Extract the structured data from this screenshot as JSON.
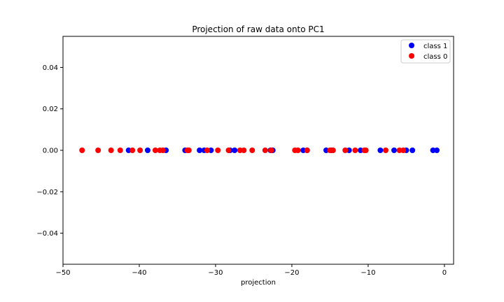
{
  "chart_data": {
    "type": "scatter",
    "title": "Projection of raw data onto PC1",
    "xlabel": "projection",
    "ylabel": "",
    "xlim": [
      -50,
      1.2
    ],
    "ylim": [
      -0.055,
      0.055
    ],
    "xticks": [
      -50,
      -40,
      -30,
      -20,
      -10,
      0
    ],
    "yticks": [
      -0.04,
      -0.02,
      0.0,
      0.02,
      0.04
    ],
    "ytick_labels": [
      "−0.04",
      "−0.02",
      "0.00",
      "0.02",
      "0.04"
    ],
    "xtick_labels": [
      "−50",
      "−40",
      "−30",
      "−20",
      "−10",
      "0"
    ],
    "grid": false,
    "legend": "top-right",
    "series": [
      {
        "name": "class 1",
        "color": "#0000ff",
        "x": [
          -41.4,
          -38.9,
          -36.5,
          -34.0,
          -32.1,
          -31.5,
          -30.6,
          -28.1,
          -27.5,
          -22.5,
          -22.8,
          -18.5,
          -18.0,
          -15.5,
          -14.8,
          -12.5,
          -11.0,
          -8.4,
          -6.6,
          -5.0,
          -4.2,
          -1.5,
          -1.0
        ],
        "y": [
          0,
          0,
          0,
          0,
          0,
          0,
          0,
          0,
          0,
          0,
          0,
          0,
          0,
          0,
          0,
          0,
          0,
          0,
          0,
          0,
          0,
          0,
          0
        ]
      },
      {
        "name": "class 0",
        "color": "#ff0000",
        "x": [
          -47.5,
          -45.4,
          -43.7,
          -42.5,
          -40.9,
          -39.9,
          -37.9,
          -37.3,
          -36.9,
          -33.5,
          -33.7,
          -31.1,
          -29.7,
          -28.3,
          -26.8,
          -26.3,
          -25.2,
          -23.5,
          -22.7,
          -19.6,
          -19.2,
          -18.0,
          -15.0,
          -14.6,
          -13.0,
          -11.7,
          -10.5,
          -10.3,
          -7.7,
          -5.9,
          -5.4
        ],
        "y": [
          0,
          0,
          0,
          0,
          0,
          0,
          0,
          0,
          0,
          0,
          0,
          0,
          0,
          0,
          0,
          0,
          0,
          0,
          0,
          0,
          0,
          0,
          0,
          0,
          0,
          0,
          0,
          0,
          0,
          0,
          0
        ]
      }
    ]
  }
}
